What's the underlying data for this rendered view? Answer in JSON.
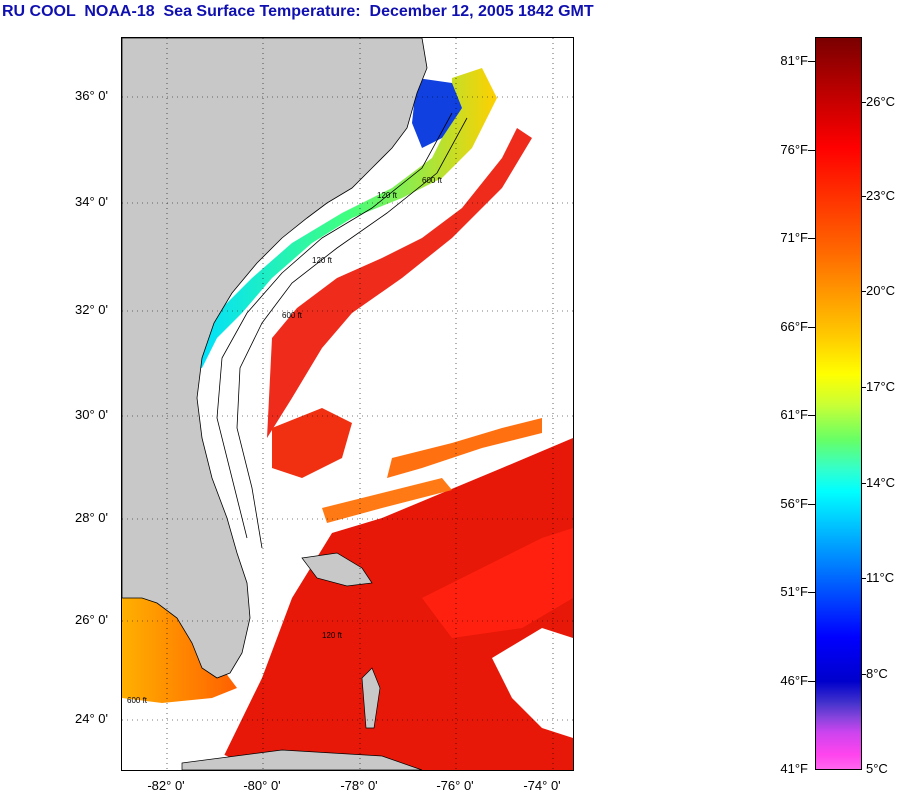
{
  "title": "RU COOL  NOAA-18  Sea Surface Temperature:  December 12, 2005 1842 GMT",
  "map": {
    "latitude_labels": [
      "36° 0'",
      "34° 0'",
      "32° 0'",
      "30° 0'",
      "28° 0'",
      "26° 0'",
      "24° 0'"
    ],
    "longitude_labels": [
      "-82° 0'",
      "-80° 0'",
      "-78° 0'",
      "-76° 0'",
      "-74° 0'"
    ],
    "contour_labels": [
      "120 ft",
      "600 ft",
      "120 ft",
      "600 ft",
      "120 ft",
      "600 ft"
    ],
    "colors": {
      "land": "#c8c8c8",
      "cloud": "#ffffff",
      "warm": "#ee1a0a",
      "cold": "#0a40ee"
    }
  },
  "colorbar": {
    "fahrenheit_labels": [
      "81°F",
      "76°F",
      "71°F",
      "66°F",
      "61°F",
      "56°F",
      "51°F",
      "46°F",
      "41°F"
    ],
    "celsius_labels": [
      "26°C",
      "23°C",
      "20°C",
      "17°C",
      "14°C",
      "11°C",
      "8°C",
      "5°C"
    ]
  }
}
